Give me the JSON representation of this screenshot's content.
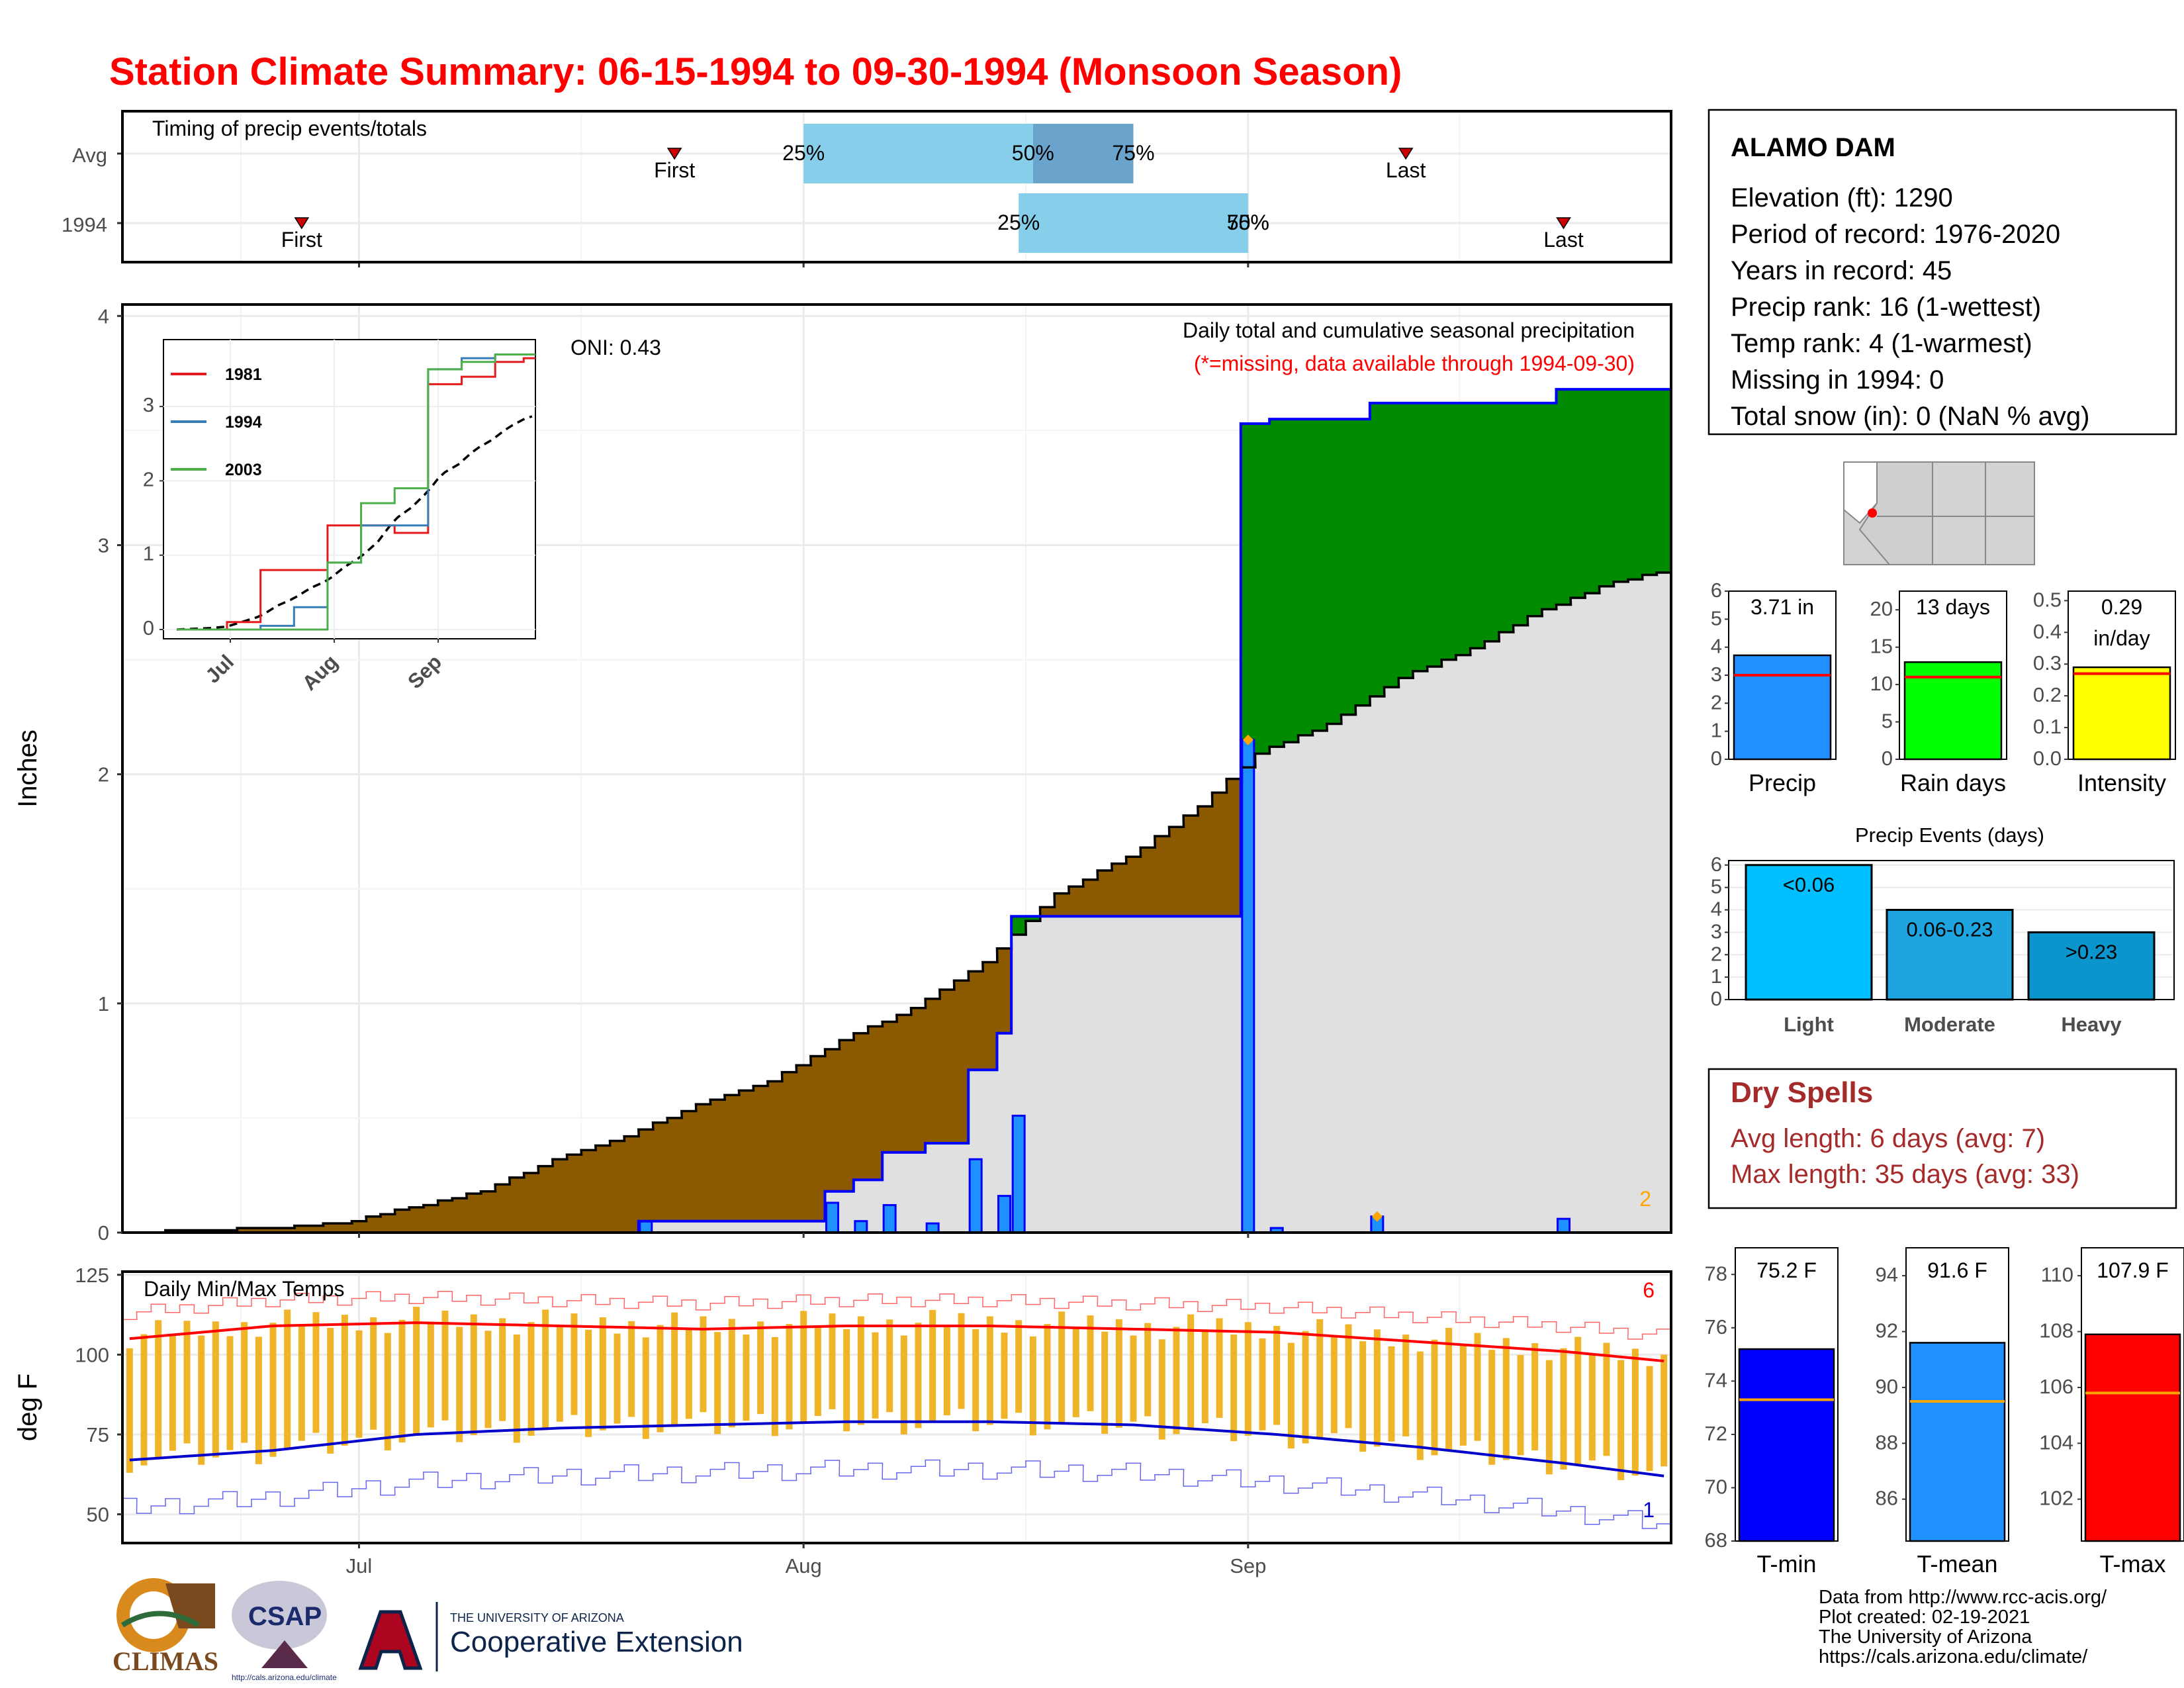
{
  "title": "Station Climate Summary: 06-15-1994 to 09-30-1994 (Monsoon Season)",
  "timing_panel": {
    "label": "Timing of precip events/totals",
    "rows": [
      "Avg",
      "1994"
    ],
    "pct_labels": [
      "25%",
      "50%",
      "75%"
    ],
    "first_label": "First",
    "last_label": "Last",
    "avg": {
      "first": "1994-07-23",
      "p25": "1994-08-01",
      "p50": "1994-08-17",
      "p75": "1994-08-24",
      "last": "1994-09-12"
    },
    "y1994": {
      "first": "1994-06-27",
      "p25": "1994-08-16",
      "p50": "1994-09-01",
      "p75": "1994-09-01",
      "last": "1994-09-23"
    }
  },
  "colors": {
    "timing_light": "#87ceeb",
    "timing_mid": "#6aa4cc",
    "deficit_fill": "#8b5a00",
    "surplus_fill": "#008b00",
    "background_fill": "#e0e0e0",
    "cumulative_line": "#0000ff",
    "daily_bar": "#1e90ff",
    "temp_bar": "#f0b429",
    "tmax_line": "#ff0000",
    "tmin_line": "#0000cc",
    "tmin_box": "#0000ff",
    "tmean_box": "#1e90ff",
    "tmax_box": "#ff0000",
    "rain_days_box": "#00ff00",
    "intensity_box": "#ffff00",
    "light_box": "#00bfff",
    "moderate_box": "#1ea5e0",
    "heavy_box": "#0a95cc"
  },
  "main_panel": {
    "ylabel": "Inches",
    "yticks": [
      "0",
      "1",
      "2",
      "3",
      "4"
    ],
    "xticks": [
      "Jul",
      "Aug",
      "Sep"
    ],
    "oni_label": "ONI: 0.43",
    "annot1": "Daily total and cumulative seasonal precipitation",
    "annot2": "(*=missing, data available through 1994-09-30)",
    "corner_num": "2"
  },
  "inset": {
    "legend": [
      "1981",
      "1994",
      "2003"
    ],
    "yticks": [
      "0",
      "1",
      "2",
      "3"
    ],
    "xticks": [
      "Jul",
      "Aug",
      "Sep"
    ]
  },
  "temp_panel": {
    "label": "Daily Min/Max Temps",
    "ylabel": "deg F",
    "yticks": [
      "50",
      "75",
      "100",
      "125"
    ],
    "num_high": "6",
    "num_low": "1"
  },
  "station": {
    "name": "ALAMO DAM",
    "lines": [
      "Elevation (ft): 1290",
      "Period of record: 1976-2020",
      "Years in record: 45",
      "Precip rank: 16 (1-wettest)",
      "Temp rank: 4 (1-warmest)",
      "Missing in 1994: 0",
      "Total snow (in): 0 (NaN % avg)"
    ]
  },
  "mini_bars": [
    {
      "name": "Precip",
      "label": "3.71 in",
      "value": 3.71,
      "avg": 3.0,
      "yticks": [
        "0",
        "1",
        "2",
        "3",
        "4",
        "5",
        "6"
      ],
      "ymax": 6
    },
    {
      "name": "Rain days",
      "label": "13 days",
      "value": 13,
      "avg": 11,
      "yticks": [
        "0",
        "5",
        "10",
        "15",
        "20"
      ],
      "ymax": 22.5
    },
    {
      "name": "Intensity",
      "label": "0.29",
      "label2": "in/day",
      "value": 0.29,
      "avg": 0.27,
      "yticks": [
        "0.0",
        "0.1",
        "0.2",
        "0.3",
        "0.4",
        "0.5"
      ],
      "ymax": 0.53
    }
  ],
  "events": {
    "title": "Precip Events (days)",
    "yticks": [
      "0",
      "1",
      "2",
      "3",
      "4",
      "5",
      "6"
    ],
    "bars": [
      {
        "name": "Light",
        "label": "<0.06",
        "value": 6
      },
      {
        "name": "Moderate",
        "label": "0.06-0.23",
        "value": 4
      },
      {
        "name": "Heavy",
        "label": ">0.23",
        "value": 3
      }
    ]
  },
  "dry_spells": {
    "title": "Dry Spells",
    "avg_length": "Avg length: 6 days (avg: 7)",
    "max_length": "Max length: 35 days (avg: 33)"
  },
  "temp_boxes": [
    {
      "name": "T-min",
      "label": "75.2 F",
      "value": 75.2,
      "avg": 73.3,
      "yticks": [
        "68",
        "70",
        "72",
        "74",
        "76",
        "78"
      ],
      "ymin": 68,
      "ymax": 79
    },
    {
      "name": "T-mean",
      "label": "91.6 F",
      "value": 91.6,
      "avg": 89.5,
      "yticks": [
        "86",
        "88",
        "90",
        "92",
        "94"
      ],
      "ymin": 84.5,
      "ymax": 95
    },
    {
      "name": "T-max",
      "label": "107.9 F",
      "value": 107.9,
      "avg": 105.8,
      "yticks": [
        "102",
        "104",
        "106",
        "108",
        "110"
      ],
      "ymin": 100.5,
      "ymax": 111
    }
  ],
  "footer": {
    "lines": [
      "Data from http://www.rcc-acis.org/",
      "Plot created: 02-19-2021",
      "The University of Arizona",
      "https://cals.arizona.edu/climate/"
    ],
    "logo_climas": "CLIMAS",
    "logo_csap": "CSAP",
    "logo_csap_url": "http://cals.arizona.edu/climate",
    "logo_ua_small": "THE UNIVERSITY OF ARIZONA",
    "logo_ua_big": "Cooperative Extension"
  },
  "chart_data": [
    {
      "type": "area",
      "title": "Daily total and cumulative seasonal precipitation",
      "ylabel": "Inches",
      "ylim": [
        0,
        4.05
      ],
      "xlim": [
        "1994-06-15",
        "1994-09-30"
      ],
      "series": [
        {
          "name": "",
          "x": [
            "1994-06-15",
            "1994-06-20",
            "1994-06-25",
            "1994-06-30",
            "1994-07-05",
            "1994-07-10",
            "1994-07-15",
            "1994-07-20",
            "1994-07-25",
            "1994-07-30",
            "1994-08-04",
            "1994-08-09",
            "1994-08-14",
            "1994-08-19",
            "1994-08-24",
            "1994-08-29",
            "1994-09-02",
            "1994-09-07",
            "1994-09-12",
            "1994-09-17",
            "1994-09-22",
            "1994-09-27",
            "1994-09-30"
          ],
          "values": [
            0,
            0.01,
            0.02,
            0.04,
            0.11,
            0.18,
            0.32,
            0.42,
            0.56,
            0.66,
            0.84,
            0.98,
            1.18,
            1.48,
            1.64,
            1.86,
            2.09,
            2.22,
            2.42,
            2.55,
            2.72,
            2.84,
            2.88
          ]
        }
      ]
    },
    {
      "type": "bar",
      "title": "",
      "dates": [
        "1994-07-21",
        "1994-08-03",
        "1994-08-05",
        "1994-08-07",
        "1994-08-10",
        "1994-08-13",
        "1994-08-15",
        "1994-08-16",
        "1994-09-01",
        "1994-09-03",
        "1994-09-10",
        "1994-09-23"
      ],
      "values": [
        0.05,
        0.13,
        0.05,
        0.12,
        0.04,
        0.32,
        0.16,
        0.51,
        2.15,
        0.02,
        0.07,
        0.06
      ],
      "cumulative": [
        0.05,
        0.18,
        0.23,
        0.35,
        0.39,
        0.71,
        0.87,
        1.38,
        3.53,
        3.55,
        3.62,
        3.68
      ]
    },
    {
      "type": "bar",
      "title": "",
      "categories": [
        "Avg",
        "1994"
      ],
      "series": [
        {
          "name": "First",
          "values": [
            "1994-07-23",
            "1994-06-27"
          ]
        },
        {
          "name": "25%",
          "values": [
            "1994-08-01",
            "1994-08-16"
          ]
        },
        {
          "name": "50%",
          "values": [
            "1994-08-17",
            "1994-09-01"
          ]
        },
        {
          "name": "75%",
          "values": [
            "1994-08-24",
            "1994-09-01"
          ]
        },
        {
          "name": "Last",
          "values": [
            "1994-09-12",
            "1994-09-23"
          ]
        }
      ]
    },
    {
      "type": "line",
      "title": "",
      "x_days_from_jun15": [
        0,
        10,
        20,
        30,
        40,
        50,
        60,
        70,
        80,
        90,
        100,
        107
      ],
      "series": [
        {
          "name": "1981",
          "values": [
            0,
            0,
            0.1,
            0.8,
            0.8,
            1.4,
            1.4,
            1.3,
            3.3,
            3.4,
            3.6,
            3.65
          ]
        },
        {
          "name": "1994",
          "values": [
            0,
            0,
            0,
            0.05,
            0.3,
            0.9,
            1.4,
            1.4,
            3.5,
            3.65,
            3.7,
            3.7
          ]
        },
        {
          "name": "2003",
          "values": [
            0,
            0,
            0,
            0,
            0,
            0.9,
            1.7,
            1.9,
            3.5,
            3.6,
            3.7,
            3.7
          ]
        }
      ]
    },
    {
      "type": "line",
      "title": "Daily Min/Max Temps",
      "ylabel": "deg F",
      "ylim": [
        41,
        126
      ],
      "xlim": [
        "1994-06-15",
        "1994-09-30"
      ],
      "series": [
        {
          "name": "",
          "x": [
            "06-15",
            "06-25",
            "07-05",
            "07-15",
            "07-25",
            "08-04",
            "08-14",
            "08-24",
            "09-03",
            "09-13",
            "09-23",
            "09-30"
          ],
          "values": [
            105,
            109,
            110,
            109,
            108,
            109,
            109,
            108,
            107,
            104,
            101,
            98
          ]
        },
        {
          "name": "",
          "x": [
            "06-15",
            "06-25",
            "07-05",
            "07-15",
            "07-25",
            "08-04",
            "08-14",
            "08-24",
            "09-03",
            "09-13",
            "09-23",
            "09-30"
          ],
          "values": [
            67,
            70,
            75,
            77,
            78,
            79,
            79,
            78,
            75,
            71,
            66,
            62
          ]
        }
      ]
    }
  ]
}
